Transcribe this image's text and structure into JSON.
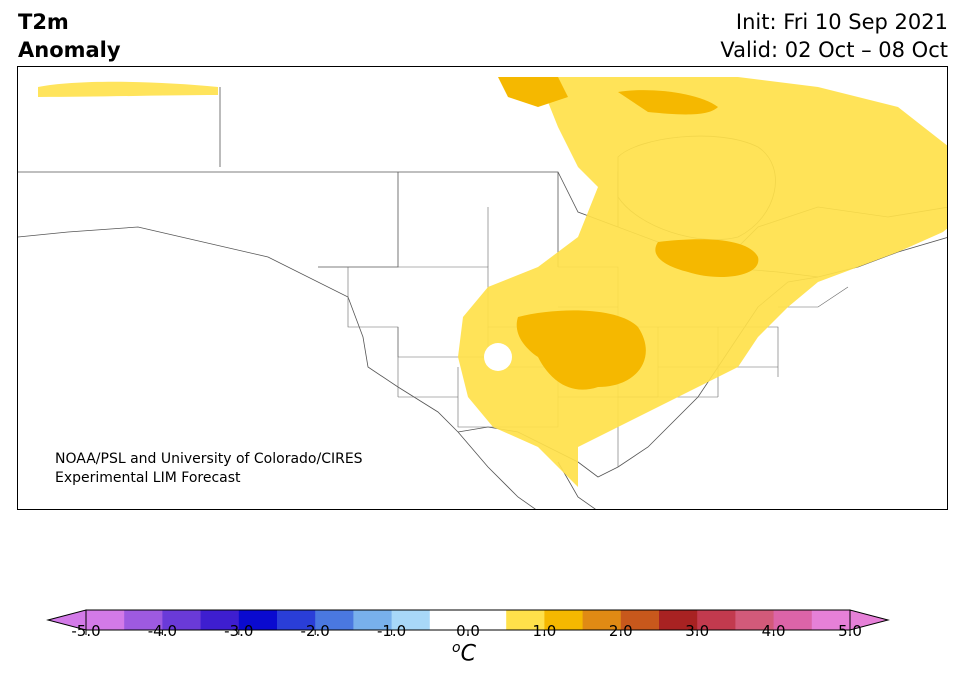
{
  "title": {
    "left_line1": "T2m",
    "left_line2": "Anomaly",
    "right_line1": "Init: Fri 10 Sep 2021",
    "right_line2": "Valid: 02 Oct – 08 Oct"
  },
  "credit": {
    "line1": "NOAA/PSL and University of Colorado/CIRES",
    "line2": "Experimental LIM Forecast"
  },
  "colorbar": {
    "unit_base": "C",
    "unit_sup": "o",
    "tick_labels": [
      "-5.0",
      "-4.0",
      "-3.0",
      "-2.0",
      "-1.0",
      "0.0",
      "1.0",
      "2.0",
      "3.0",
      "4.0",
      "5.0"
    ],
    "colors": [
      "#d37ae8",
      "#9e5ae0",
      "#6a3ad8",
      "#3e1ed0",
      "#0a0ad0",
      "#2a3ed8",
      "#4a78e0",
      "#78b0ec",
      "#a8d8f8",
      "#ffffff",
      "#ffffff",
      "#ffe14a",
      "#f5b800",
      "#e08a14",
      "#c8581c",
      "#a82222",
      "#c23a4e",
      "#d25a7a",
      "#dc64a8",
      "#e680d8"
    ],
    "under_color": "#d37ae8",
    "over_color": "#e680d8"
  },
  "map": {
    "anomaly_colors": {
      "light": "#ffe14a",
      "dark": "#f5b800"
    }
  }
}
